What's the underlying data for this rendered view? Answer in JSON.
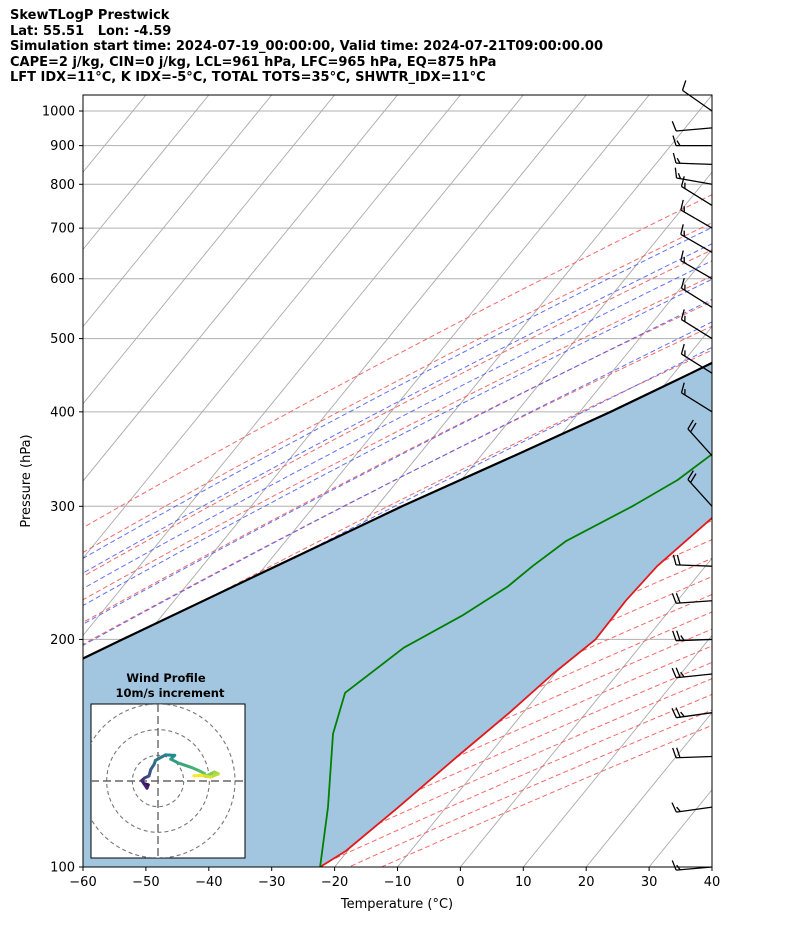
{
  "header": {
    "lines": [
      "SkewTLogP Prestwick",
      "Lat: 55.51   Lon: -4.59",
      "Simulation start time: 2024-07-19_00:00:00, Valid time: 2024-07-21T09:00:00.00",
      "CAPE=2 j/kg, CIN=0 j/kg, LCL=961 hPa, LFC=965 hPa, EQ=875 hPa",
      "LFT IDX=11°C, K IDX=-5°C, TOTAL TOTS=35°C, SHWTR_IDX=11°C"
    ]
  },
  "chart_data": [
    {
      "type": "line",
      "subtype": "skew-t log-p",
      "xlabel": "Temperature (°C)",
      "ylabel": "Pressure (hPa)",
      "xlim": [
        -60,
        40
      ],
      "ylim": [
        1050,
        100
      ],
      "y_scale": "log",
      "x_ticks": [
        -60,
        -50,
        -40,
        -30,
        -20,
        -10,
        0,
        10,
        20,
        30,
        40
      ],
      "x_tick_labels": [
        "−60",
        "−50",
        "−40",
        "−30",
        "−20",
        "−10",
        "0",
        "10",
        "20",
        "30",
        "40"
      ],
      "y_ticks": [
        1000,
        900,
        800,
        700,
        600,
        500,
        400,
        300,
        200,
        100
      ],
      "y_tick_labels": [
        "1000",
        "900",
        "800",
        "700",
        "600",
        "500",
        "400",
        "300",
        "200",
        "100"
      ],
      "grid": true,
      "colors": {
        "temperature": "#e31a1c",
        "dewpoint": "#008000",
        "parcel": "#000000",
        "cape_fill": "#a3c6e0",
        "dry_adiabat": "#f05a5a",
        "moist_adiabat": "#4a56ee",
        "mixing_ratio": "#6a6af0",
        "isotherm": "#aaaaaa"
      },
      "series": [
        {
          "role": "temperature",
          "points": [
            [
              12.8,
              1000
            ],
            [
              11.0,
              950
            ],
            [
              10.0,
              900
            ],
            [
              9.8,
              850
            ],
            [
              10.6,
              800
            ],
            [
              11.6,
              750
            ],
            [
              10.3,
              700
            ],
            [
              7.4,
              650
            ],
            [
              7.0,
              600
            ],
            [
              6.9,
              550
            ],
            [
              6.3,
              500
            ],
            [
              4.9,
              450
            ],
            [
              2.7,
              400
            ],
            [
              -1.0,
              350
            ],
            [
              -4.6,
              300
            ],
            [
              -7.7,
              250
            ],
            [
              -8.2,
              225
            ],
            [
              -8.0,
              200
            ],
            [
              -10.3,
              180
            ],
            [
              -12.2,
              160
            ],
            [
              -14.8,
              140
            ],
            [
              -17.6,
              120
            ],
            [
              -20.3,
              105
            ],
            [
              -22.3,
              100
            ]
          ]
        },
        {
          "role": "dewpoint",
          "points": [
            [
              10.5,
              1000
            ],
            [
              10.0,
              950
            ],
            [
              9.0,
              900
            ],
            [
              5.5,
              850
            ],
            [
              1.0,
              800
            ],
            [
              -8.0,
              750
            ],
            [
              -17.4,
              715
            ],
            [
              -18.5,
              680
            ],
            [
              -8.3,
              640
            ],
            [
              -3.5,
              620
            ],
            [
              -1.0,
              600
            ],
            [
              -0.3,
              550
            ],
            [
              -1.0,
              500
            ],
            [
              -3.2,
              450
            ],
            [
              -7.5,
              400
            ],
            [
              -11.0,
              360
            ],
            [
              -13.6,
              350
            ],
            [
              -15.6,
              325
            ],
            [
              -19.4,
              300
            ],
            [
              -25.4,
              270
            ],
            [
              -27.5,
              250
            ],
            [
              -28.8,
              235
            ],
            [
              -32.3,
              215
            ],
            [
              -37.4,
              195
            ],
            [
              -40.9,
              170
            ],
            [
              -37.5,
              150
            ],
            [
              -28.8,
              120
            ],
            [
              -22.3,
              100
            ]
          ]
        },
        {
          "role": "parcel",
          "points": [
            [
              13.0,
              1000
            ],
            [
              9.5,
              961
            ],
            [
              8.2,
              900
            ],
            [
              6.0,
              850
            ],
            [
              3.4,
              800
            ],
            [
              0.7,
              750
            ],
            [
              -2.5,
              700
            ],
            [
              -6.0,
              650
            ],
            [
              -10.2,
              600
            ],
            [
              -15.0,
              550
            ],
            [
              -20.6,
              500
            ],
            [
              -27.3,
              450
            ],
            [
              -35.1,
              400
            ],
            [
              -44.7,
              350
            ],
            [
              -56.0,
              300
            ],
            [
              -68.3,
              250
            ],
            [
              -83.2,
              200
            ],
            [
              -102.0,
              150
            ],
            [
              -115.5,
              125
            ],
            [
              -127.5,
              110
            ],
            [
              -136.6,
              100
            ]
          ]
        }
      ],
      "wind_barbs_kt": [
        {
          "p": 100,
          "spd": 15,
          "dir": 275
        },
        {
          "p": 120,
          "spd": 15,
          "dir": 278
        },
        {
          "p": 140,
          "spd": 20,
          "dir": 272
        },
        {
          "p": 160,
          "spd": 25,
          "dir": 278
        },
        {
          "p": 180,
          "spd": 25,
          "dir": 276
        },
        {
          "p": 200,
          "spd": 25,
          "dir": 272
        },
        {
          "p": 225,
          "spd": 20,
          "dir": 274
        },
        {
          "p": 250,
          "spd": 20,
          "dir": 268
        },
        {
          "p": 300,
          "spd": 20,
          "dir": 222
        },
        {
          "p": 350,
          "spd": 20,
          "dir": 222
        },
        {
          "p": 400,
          "spd": 15,
          "dir": 238
        },
        {
          "p": 450,
          "spd": 15,
          "dir": 238
        },
        {
          "p": 500,
          "spd": 15,
          "dir": 238
        },
        {
          "p": 550,
          "spd": 15,
          "dir": 238
        },
        {
          "p": 600,
          "spd": 15,
          "dir": 240
        },
        {
          "p": 650,
          "spd": 15,
          "dir": 240
        },
        {
          "p": 700,
          "spd": 15,
          "dir": 240
        },
        {
          "p": 750,
          "spd": 15,
          "dir": 238
        },
        {
          "p": 800,
          "spd": 15,
          "dir": 260
        },
        {
          "p": 850,
          "spd": 15,
          "dir": 268
        },
        {
          "p": 900,
          "spd": 15,
          "dir": 270
        },
        {
          "p": 950,
          "spd": 10,
          "dir": 275
        },
        {
          "p": 1000,
          "spd": 10,
          "dir": 235
        }
      ]
    },
    {
      "type": "scatter",
      "subtype": "hodograph",
      "title": "Wind Profile",
      "subtitle": "10m/s increment",
      "xlim": [
        -30,
        30
      ],
      "ylim": [
        -30,
        30
      ],
      "rings": [
        10,
        20,
        30
      ],
      "colormap": [
        "#440154",
        "#3b528b",
        "#21918c",
        "#5ec962",
        "#fde725"
      ],
      "points": [
        [
          -5.5,
          -1.0
        ],
        [
          -3.8,
          -1.5
        ],
        [
          -4.3,
          -2.8
        ],
        [
          -6.3,
          0.2
        ],
        [
          -5.2,
          1.2
        ],
        [
          -3.5,
          2.0
        ],
        [
          -2.8,
          4.5
        ],
        [
          -1.5,
          6.5
        ],
        [
          -1.0,
          8.0
        ],
        [
          3.0,
          10.2
        ],
        [
          6.5,
          10.0
        ],
        [
          5.0,
          8.5
        ],
        [
          8.0,
          7.0
        ],
        [
          13.0,
          5.3
        ],
        [
          16.0,
          4.0
        ],
        [
          18.0,
          3.0
        ],
        [
          18.5,
          1.8
        ],
        [
          22.0,
          3.5
        ],
        [
          23.5,
          2.8
        ],
        [
          20.5,
          1.5
        ],
        [
          17.0,
          2.2
        ],
        [
          14.0,
          2.0
        ]
      ]
    }
  ]
}
